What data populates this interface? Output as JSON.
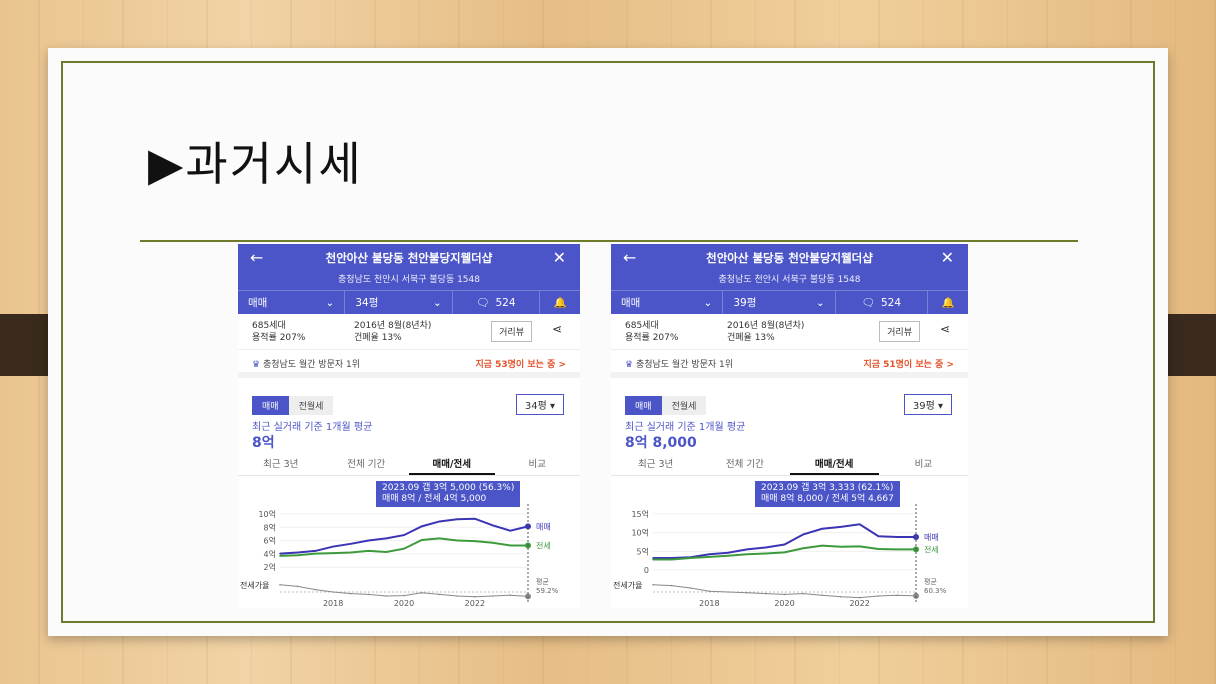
{
  "slide": {
    "title": "▶과거시세"
  },
  "panels": [
    {
      "header": {
        "title": "천안아산 불당동 천안불당지웰더샵",
        "address": "충청남도 천안시 서북구 불당동 1548"
      },
      "tabs": {
        "deal": "매매",
        "size": "34평",
        "comments": "524"
      },
      "info": {
        "households": "685세대",
        "far": "용적률 207%",
        "built": "2016년 8월(8년차)",
        "bcr": "건폐율 13%",
        "street_btn": "거리뷰"
      },
      "rank": {
        "left": "충청남도 월간 방문자 1위",
        "right": "지금 53명이 보는 중 >"
      },
      "seg": [
        "매매",
        "전월세"
      ],
      "select": "34평",
      "avg_label": "최근 실거래 기준 1개월 평균",
      "avg_value": "8억",
      "sub_tabs": [
        "최근 3년",
        "전체 기간",
        "매매/전세",
        "비교"
      ],
      "tooltip": {
        "line1": "2023.09 갭 3억 5,000 (56.3%)",
        "line2": "매매 8억 / 전세 4억 5,000"
      },
      "chart_data": {
        "type": "line",
        "yticks": [
          "10억",
          "8억",
          "6억",
          "4억",
          "2억"
        ],
        "xticks": [
          "2018",
          "2020",
          "2022"
        ],
        "x": [
          2016.5,
          2017.0,
          2017.5,
          2018.0,
          2018.5,
          2019.0,
          2019.5,
          2020.0,
          2020.5,
          2021.0,
          2021.5,
          2022.0,
          2022.5,
          2023.0,
          2023.5
        ],
        "series": [
          {
            "name": "매매",
            "values": [
              3.0,
              3.2,
              3.5,
              4.3,
              4.8,
              5.4,
              5.8,
              6.4,
              8.0,
              8.9,
              9.3,
              9.4,
              8.2,
              7.2,
              8.0
            ]
          },
          {
            "name": "전세",
            "values": [
              2.6,
              2.7,
              3.0,
              3.1,
              3.2,
              3.5,
              3.3,
              3.9,
              5.5,
              5.8,
              5.4,
              5.3,
              5.0,
              4.5,
              4.5
            ]
          },
          {
            "name": "전세가율",
            "values": [
              88,
              84,
              76,
              70,
              66,
              64,
              60,
              61,
              68,
              64,
              60,
              58,
              60,
              62,
              59.2
            ]
          }
        ],
        "ylim": [
          0,
          11
        ],
        "end_labels": {
          "sale": "매매",
          "jeonse": "전세",
          "ratio_name": "평균",
          "ratio_value": "59.2%"
        },
        "ratio_label": "전세가율"
      }
    },
    {
      "header": {
        "title": "천안아산 불당동 천안불당지웰더샵",
        "address": "충청남도 천안시 서북구 불당동 1548"
      },
      "tabs": {
        "deal": "매매",
        "size": "39평",
        "comments": "524"
      },
      "info": {
        "households": "685세대",
        "far": "용적률 207%",
        "built": "2016년 8월(8년차)",
        "bcr": "건폐율 13%",
        "street_btn": "거리뷰"
      },
      "rank": {
        "left": "충청남도 월간 방문자 1위",
        "right": "지금 51명이 보는 중 >"
      },
      "seg": [
        "매매",
        "전월세"
      ],
      "select": "39평",
      "avg_label": "최근 실거래 기준 1개월 평균",
      "avg_value": "8억 8,000",
      "sub_tabs": [
        "최근 3년",
        "전체 기간",
        "매매/전세",
        "비교"
      ],
      "tooltip": {
        "line1": "2023.09 갭 3억 3,333 (62.1%)",
        "line2": "매매 8억 8,000 / 전세 5억 4,667"
      },
      "chart_data": {
        "type": "line",
        "yticks": [
          "15억",
          "10억",
          "5억",
          "0"
        ],
        "xticks": [
          "2018",
          "2020",
          "2022"
        ],
        "x": [
          2016.5,
          2017.0,
          2017.5,
          2018.0,
          2018.5,
          2019.0,
          2019.5,
          2020.0,
          2020.5,
          2021.0,
          2021.5,
          2022.0,
          2022.5,
          2023.0,
          2023.5
        ],
        "series": [
          {
            "name": "매매",
            "values": [
              3.2,
              3.2,
              3.4,
              4.2,
              4.6,
              5.5,
              6.0,
              6.8,
              9.5,
              11.0,
              11.5,
              12.2,
              9.0,
              8.8,
              8.8
            ]
          },
          {
            "name": "전세",
            "values": [
              2.8,
              2.8,
              3.2,
              3.5,
              3.8,
              4.2,
              4.4,
              4.7,
              5.8,
              6.5,
              6.2,
              6.3,
              5.6,
              5.5,
              5.5
            ]
          },
          {
            "name": "전세가율",
            "values": [
              88,
              86,
              80,
              72,
              70,
              68,
              66,
              64,
              66,
              62,
              58,
              56,
              60,
              62,
              60.3
            ]
          }
        ],
        "ylim": [
          0,
          16
        ],
        "end_labels": {
          "sale": "매매",
          "jeonse": "전세",
          "ratio_name": "평균",
          "ratio_value": "60.3%"
        },
        "ratio_label": "전세가율"
      }
    }
  ]
}
